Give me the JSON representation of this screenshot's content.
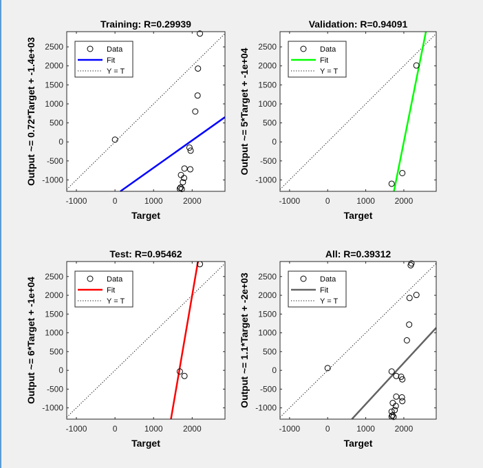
{
  "window": {
    "left_strip_color": "#5b9bd5"
  },
  "chart_data": [
    {
      "type": "scatter",
      "title": "Training: R=0.29939",
      "xlabel": "Target",
      "ylabel": "Output ~= 0.72*Target + -1.4e+03",
      "xlim": [
        -1250,
        2850
      ],
      "ylim": [
        -1300,
        2900
      ],
      "xticks": [
        -1000,
        0,
        1000,
        2000
      ],
      "xtick_labels": [
        "-1000",
        "0",
        "1000",
        "2000"
      ],
      "yticks": [
        -1000,
        -500,
        0,
        500,
        1000,
        1500,
        2000,
        2500
      ],
      "ytick_labels": [
        "-1000",
        "-500",
        "0",
        "500",
        "1000",
        "1500",
        "2000",
        "2500"
      ],
      "fit_color": "#0000ff",
      "fit": {
        "slope": 0.72,
        "intercept": -1400
      },
      "points": [
        {
          "x": 2200,
          "y": 2850
        },
        {
          "x": 2150,
          "y": 1930
        },
        {
          "x": 2140,
          "y": 1220
        },
        {
          "x": 2080,
          "y": 800
        },
        {
          "x": 0,
          "y": 60
        },
        {
          "x": 1930,
          "y": -150
        },
        {
          "x": 1960,
          "y": -230
        },
        {
          "x": 1800,
          "y": -700
        },
        {
          "x": 1950,
          "y": -720
        },
        {
          "x": 1710,
          "y": -870
        },
        {
          "x": 1790,
          "y": -950
        },
        {
          "x": 1760,
          "y": -1060
        },
        {
          "x": 1700,
          "y": -1200
        },
        {
          "x": 1680,
          "y": -1230
        },
        {
          "x": 1730,
          "y": -1240
        }
      ],
      "legend": {
        "entries": [
          "Data",
          "Fit",
          "Y = T"
        ],
        "placement": "top-left"
      }
    },
    {
      "type": "scatter",
      "title": "Validation: R=0.94091",
      "xlabel": "Target",
      "ylabel": "Output ~= 5*Target + -1e+04",
      "xlim": [
        -1250,
        2850
      ],
      "ylim": [
        -1300,
        2900
      ],
      "xticks": [
        -1000,
        0,
        1000,
        2000
      ],
      "xtick_labels": [
        "-1000",
        "0",
        "1000",
        "2000"
      ],
      "yticks": [
        -1000,
        -500,
        0,
        500,
        1000,
        1500,
        2000,
        2500
      ],
      "ytick_labels": [
        "-1000",
        "-500",
        "0",
        "500",
        "1000",
        "1500",
        "2000",
        "2500"
      ],
      "fit_color": "#00ff00",
      "fit": {
        "slope": 5,
        "intercept": -10000
      },
      "points": [
        {
          "x": 2330,
          "y": 2010
        },
        {
          "x": 1960,
          "y": -820
        },
        {
          "x": 1680,
          "y": -1100
        }
      ],
      "legend": {
        "entries": [
          "Data",
          "Fit",
          "Y = T"
        ],
        "placement": "top-left"
      }
    },
    {
      "type": "scatter",
      "title": "Test: R=0.95462",
      "xlabel": "Target",
      "ylabel": "Output ~= 6*Target + -1e+04",
      "xlim": [
        -1250,
        2850
      ],
      "ylim": [
        -1300,
        2900
      ],
      "xticks": [
        -1000,
        0,
        1000,
        2000
      ],
      "xtick_labels": [
        "-1000",
        "0",
        "1000",
        "2000"
      ],
      "yticks": [
        -1000,
        -500,
        0,
        500,
        1000,
        1500,
        2000,
        2500
      ],
      "ytick_labels": [
        "-1000",
        "-500",
        "0",
        "500",
        "1000",
        "1500",
        "2000",
        "2500"
      ],
      "fit_color": "#ff0000",
      "fit": {
        "slope": 6,
        "intercept": -10000
      },
      "points": [
        {
          "x": 2200,
          "y": 2830
        },
        {
          "x": 1680,
          "y": -30
        },
        {
          "x": 1800,
          "y": -150
        }
      ],
      "legend": {
        "entries": [
          "Data",
          "Fit",
          "Y = T"
        ],
        "placement": "top-left"
      }
    },
    {
      "type": "scatter",
      "title": "All: R=0.39312",
      "xlabel": "Target",
      "ylabel": "Output ~= 1.1*Target + -2e+03",
      "xlim": [
        -1250,
        2850
      ],
      "ylim": [
        -1300,
        2900
      ],
      "xticks": [
        -1000,
        0,
        1000,
        2000
      ],
      "xtick_labels": [
        "-1000",
        "0",
        "1000",
        "2000"
      ],
      "yticks": [
        -1000,
        -500,
        0,
        500,
        1000,
        1500,
        2000,
        2500
      ],
      "ytick_labels": [
        "-1000",
        "-500",
        "0",
        "500",
        "1000",
        "1500",
        "2000",
        "2500"
      ],
      "fit_color": "#636363",
      "fit": {
        "slope": 1.1,
        "intercept": -2000
      },
      "points": [
        {
          "x": 2200,
          "y": 2850
        },
        {
          "x": 2180,
          "y": 2800
        },
        {
          "x": 2330,
          "y": 2010
        },
        {
          "x": 2150,
          "y": 1930
        },
        {
          "x": 2140,
          "y": 1220
        },
        {
          "x": 2080,
          "y": 800
        },
        {
          "x": 0,
          "y": 60
        },
        {
          "x": 1680,
          "y": -30
        },
        {
          "x": 1800,
          "y": -150
        },
        {
          "x": 1930,
          "y": -170
        },
        {
          "x": 1960,
          "y": -240
        },
        {
          "x": 1800,
          "y": -700
        },
        {
          "x": 1950,
          "y": -720
        },
        {
          "x": 1710,
          "y": -870
        },
        {
          "x": 1960,
          "y": -820
        },
        {
          "x": 1790,
          "y": -950
        },
        {
          "x": 1760,
          "y": -1060
        },
        {
          "x": 1680,
          "y": -1100
        },
        {
          "x": 1700,
          "y": -1200
        },
        {
          "x": 1680,
          "y": -1230
        },
        {
          "x": 1730,
          "y": -1240
        }
      ],
      "legend": {
        "entries": [
          "Data",
          "Fit",
          "Y = T"
        ],
        "placement": "top-left"
      }
    }
  ]
}
